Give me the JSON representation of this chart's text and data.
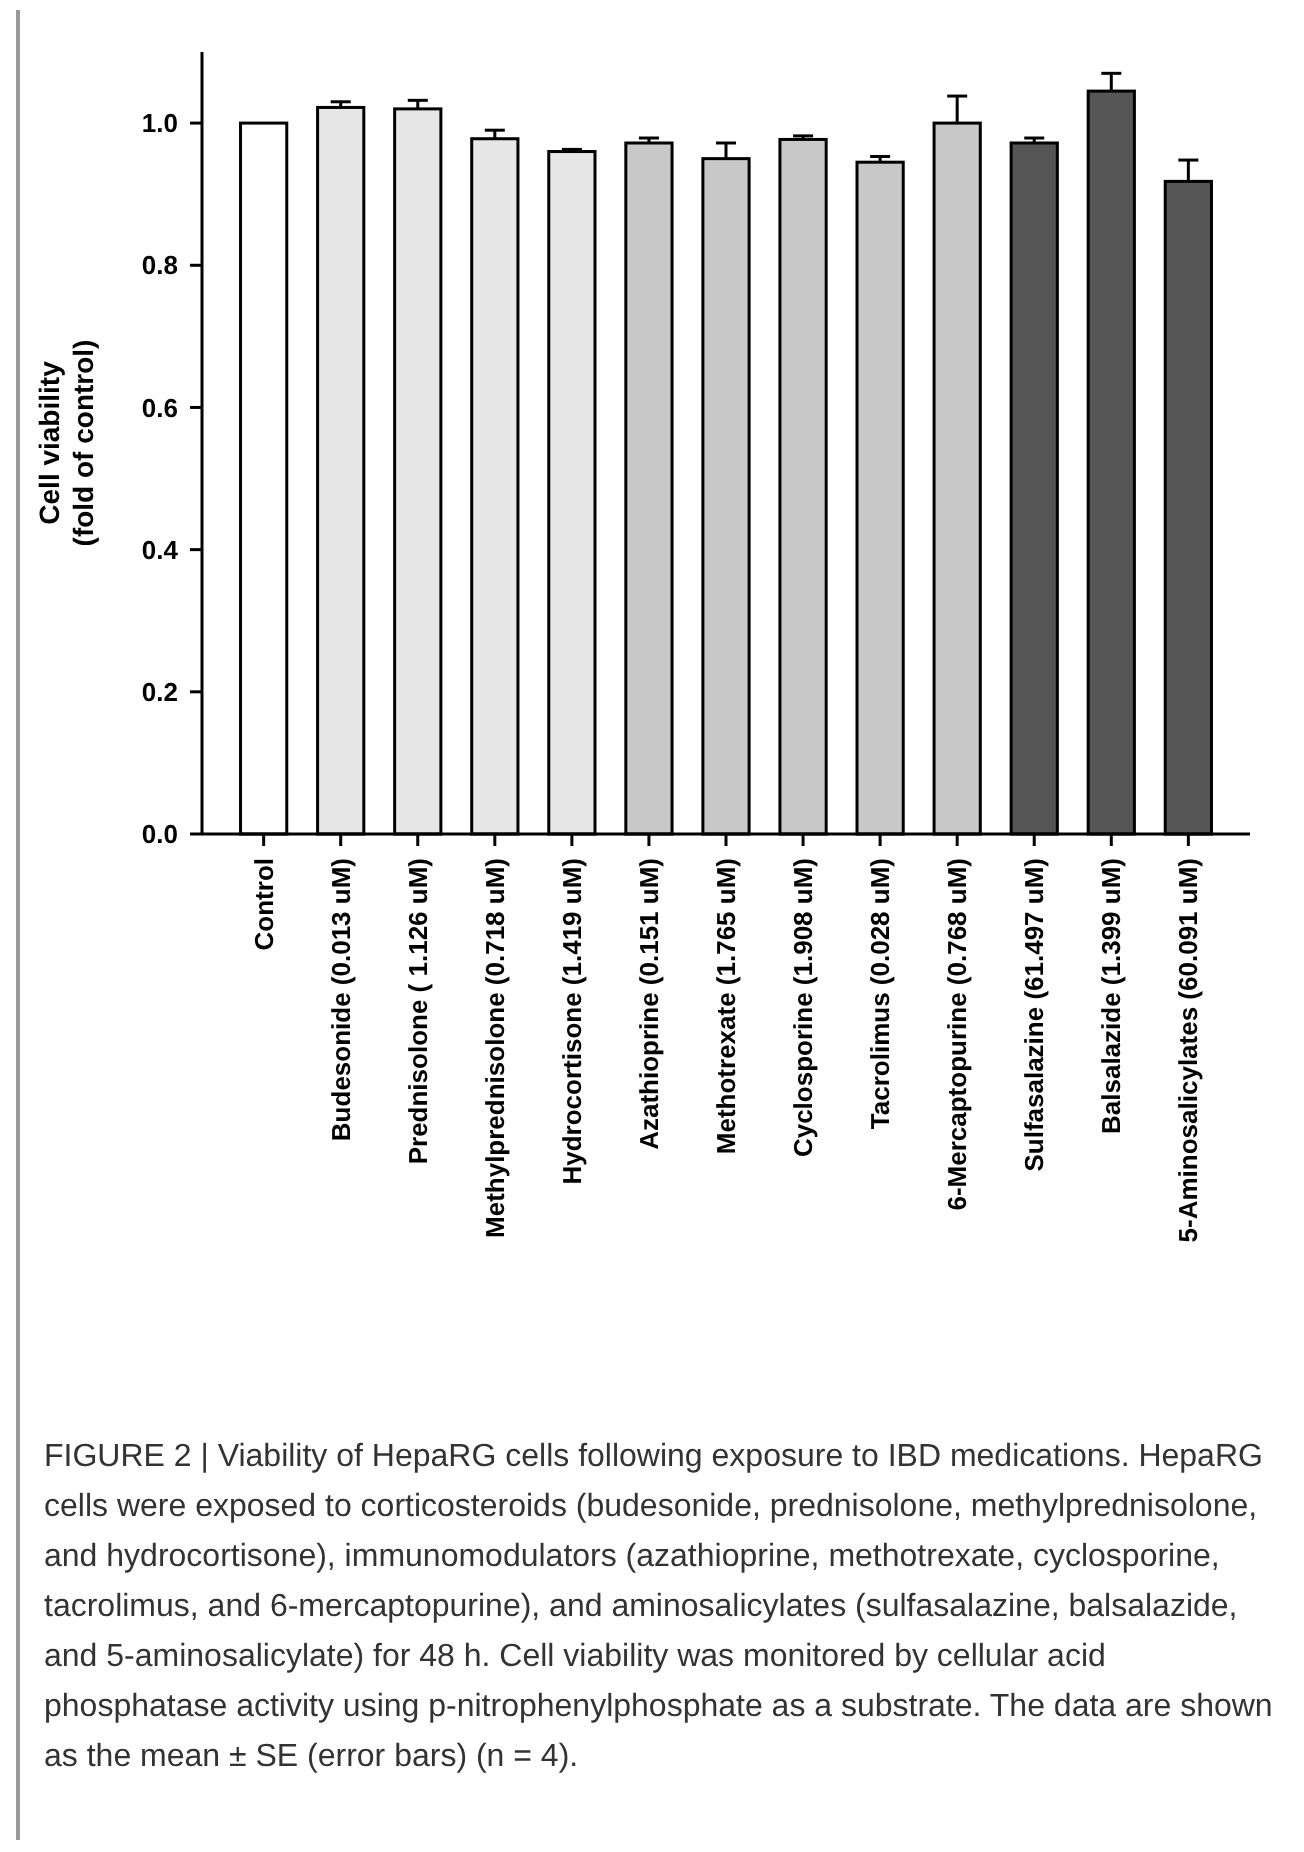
{
  "chart_data": {
    "type": "bar",
    "ylabel": "Cell viability\n(fold of control)",
    "categories": [
      "Control",
      "Budesonide (0.013 uM)",
      "Prednisolone ( 1.126 uM)",
      "Methylprednisolone (0.718 uM)",
      "Hydrocortisone (1.419 uM)",
      "Azathioprine (0.151 uM)",
      "Methotrexate (1.765 uM)",
      "Cyclosporine (1.908 uM)",
      "Tacrolimus (0.028 uM)",
      "6-Mercaptopurine (0.768 uM)",
      "Sulfasalazine (61.497 uM)",
      "Balsalazide (1.399 uM)",
      "5-Aminosalicylates (60.091 uM)"
    ],
    "values": [
      1.0,
      1.022,
      1.02,
      0.978,
      0.96,
      0.972,
      0.95,
      0.977,
      0.945,
      1.0,
      0.972,
      1.045,
      0.918
    ],
    "errors": [
      null,
      0.008,
      0.012,
      0.012,
      0.003,
      0.007,
      0.022,
      0.005,
      0.008,
      0.038,
      0.007,
      0.025,
      0.03
    ],
    "colors": [
      "#ffffff",
      "#e6e6e6",
      "#e6e6e6",
      "#e6e6e6",
      "#e6e6e6",
      "#c8c8c8",
      "#c8c8c8",
      "#c8c8c8",
      "#c8c8c8",
      "#c8c8c8",
      "#555555",
      "#555555",
      "#555555"
    ],
    "ylim": [
      0,
      1.1
    ],
    "yticks": [
      {
        "value": 0,
        "label": "0.0"
      },
      {
        "value": 0.2,
        "label": "0.2"
      },
      {
        "value": 0.4,
        "label": "0.4"
      },
      {
        "value": 0.6,
        "label": "0.6"
      },
      {
        "value": 0.8,
        "label": "0.8"
      },
      {
        "value": 1.0,
        "label": "1.0"
      }
    ],
    "grid": false,
    "annotations": [
      "FIGURE 2 | Viability of HepaRG cells following exposure to IBD medications. HepaRG cells were exposed to corticosteroids (budesonide, prednisolone, methylprednisolone, and hydrocortisone), immunomodulators (azathioprine, methotrexate, cyclosporine, tacrolimus, and 6-mercaptopurine), and aminosalicylates (sulfasalazine, balsalazide, and 5-aminosalicylate) for 48 h. Cell viability was monitored by cellular acid phosphatase activity using p-nitrophenylphosphate as a substrate. The data are shown as the mean ± SE (error bars) (n = 4)."
    ]
  }
}
